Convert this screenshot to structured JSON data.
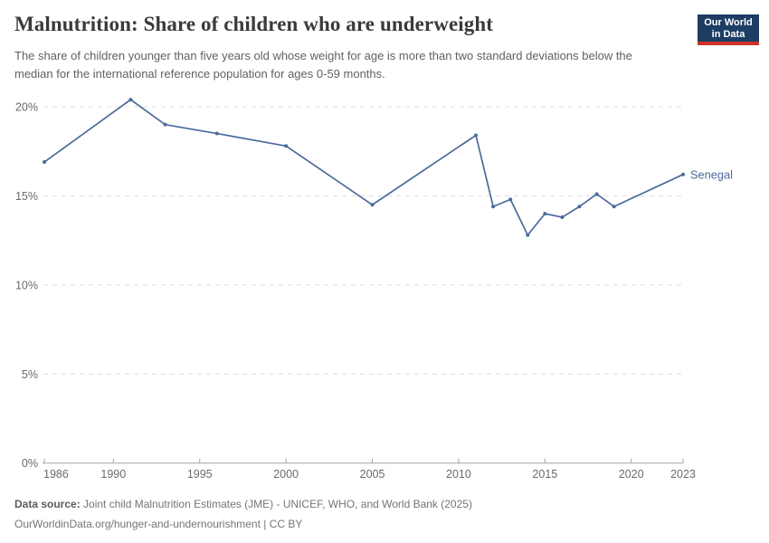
{
  "header": {
    "title": "Malnutrition: Share of children who are underweight",
    "subtitle": "The share of children younger than five years old whose weight for age is more than two standard deviations below the median for the international reference population for ages 0-59 months.",
    "logo": {
      "line1": "Our World",
      "line2": "in Data",
      "bg_color": "#1d3d63",
      "stripe_color": "#cf332a"
    }
  },
  "chart_data": {
    "type": "line",
    "title": "Malnutrition: Share of children who are underweight",
    "x": [
      1986,
      1991,
      1993,
      1996,
      2000,
      2005,
      2011,
      2012,
      2013,
      2014,
      2015,
      2016,
      2017,
      2018,
      2019,
      2023
    ],
    "series": [
      {
        "name": "Senegal",
        "color": "#4c6a9c",
        "values": [
          16.9,
          20.4,
          19.0,
          18.5,
          17.8,
          14.5,
          18.4,
          14.4,
          14.8,
          12.8,
          14.0,
          13.8,
          14.4,
          15.1,
          14.4,
          16.2
        ]
      }
    ],
    "xlabel": "",
    "ylabel": "",
    "xlim": [
      1986,
      2023
    ],
    "ylim": [
      0,
      20
    ],
    "xticks": [
      1986,
      1990,
      1995,
      2000,
      2005,
      2010,
      2015,
      2020,
      2023
    ],
    "ytick_values": [
      0,
      5,
      10,
      15,
      20
    ],
    "ytick_labels": [
      "0%",
      "5%",
      "10%",
      "15%",
      "20%"
    ],
    "grid": "horizontal-dashed",
    "legend": "series-label-at-line-end"
  },
  "footer": {
    "source_label": "Data source:",
    "source_rest": " Joint child Malnutrition Estimates (JME) - UNICEF, WHO, and World Bank (2025)",
    "link_line": "OurWorldinData.org/hunger-and-undernourishment | CC BY"
  }
}
